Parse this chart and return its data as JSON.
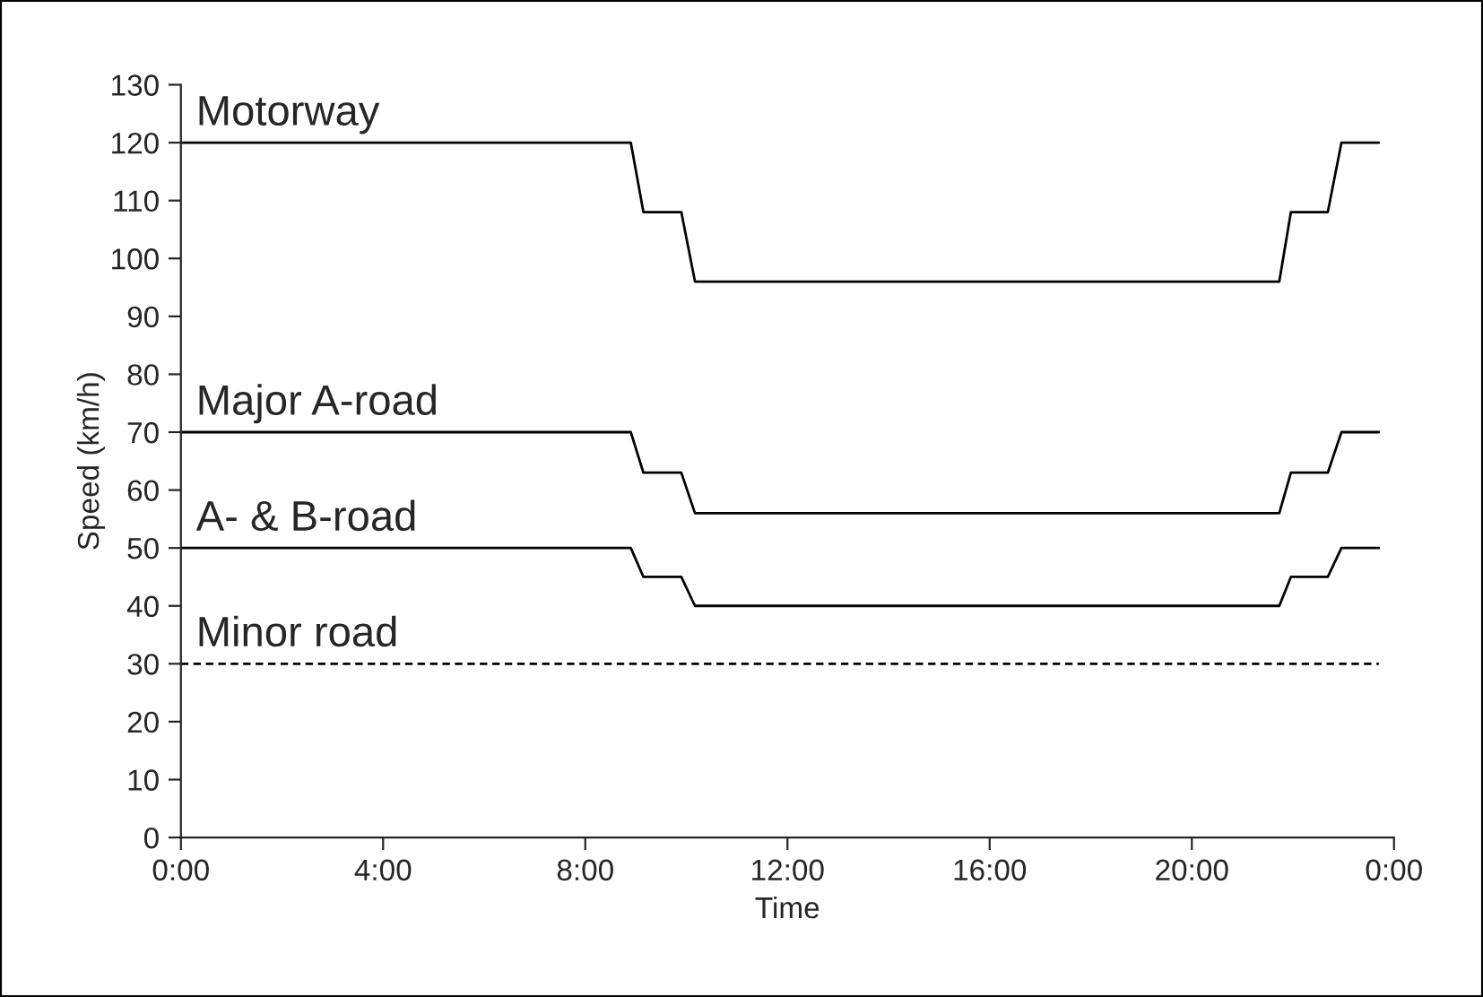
{
  "chart_data": {
    "type": "line",
    "xlabel": "Time",
    "ylabel": "Speed (km/h)",
    "xlim": [
      0,
      24
    ],
    "xticks": [
      {
        "value": 0,
        "label": "0:00"
      },
      {
        "value": 4,
        "label": "4:00"
      },
      {
        "value": 8,
        "label": "8:00"
      },
      {
        "value": 12,
        "label": "12:00"
      },
      {
        "value": 16,
        "label": "16:00"
      },
      {
        "value": 20,
        "label": "20:00"
      },
      {
        "value": 24,
        "label": "0:00"
      }
    ],
    "ylim": [
      0,
      130
    ],
    "yticks": [
      0,
      10,
      20,
      30,
      40,
      50,
      60,
      70,
      80,
      90,
      100,
      110,
      120,
      130
    ],
    "grid": false,
    "legend": false,
    "marker": "none",
    "series": [
      {
        "name": "Motorway",
        "color": "#000000",
        "line_style": "solid",
        "x": [
          0,
          8.9,
          9.15,
          9.9,
          10.17,
          21.73,
          21.96,
          22.69,
          22.96,
          23.7
        ],
        "values": [
          120,
          120,
          108,
          108,
          96,
          96,
          108,
          108,
          120,
          120
        ]
      },
      {
        "name": "Major A-road",
        "color": "#000000",
        "line_style": "solid",
        "x": [
          0,
          8.9,
          9.15,
          9.9,
          10.17,
          21.73,
          21.96,
          22.69,
          22.96,
          23.7
        ],
        "values": [
          70,
          70,
          63,
          63,
          56,
          56,
          63,
          63,
          70,
          70
        ]
      },
      {
        "name": "A- & B-road",
        "color": "#000000",
        "line_style": "solid",
        "x": [
          0,
          8.9,
          9.15,
          9.9,
          10.17,
          21.73,
          21.96,
          22.69,
          22.96,
          23.7
        ],
        "values": [
          50,
          50,
          45,
          45,
          40,
          40,
          45,
          45,
          50,
          50
        ]
      },
      {
        "name": "Minor road",
        "color": "#000000",
        "line_style": "dashed",
        "x": [
          0,
          23.7
        ],
        "values": [
          30,
          30
        ]
      }
    ]
  }
}
